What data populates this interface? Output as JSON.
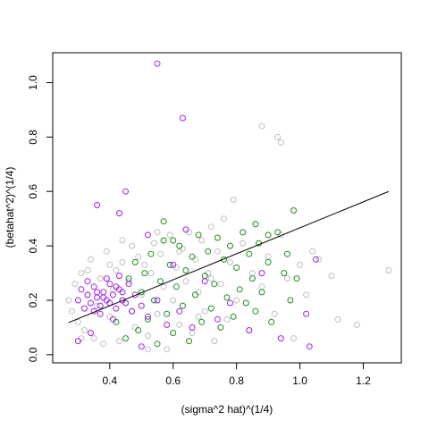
{
  "chart_data": {
    "type": "scatter",
    "title": "",
    "xlabel": "(sigma^2 hat)^(1/4)",
    "ylabel": "(betahat^2)^(1/4)",
    "xlim": [
      0.22,
      1.32
    ],
    "ylim": [
      -0.03,
      1.11
    ],
    "xticks": [
      "0.4",
      "0.6",
      "0.8",
      "1.0",
      "1.2"
    ],
    "yticks": [
      "0.0",
      "0.2",
      "0.4",
      "0.6",
      "0.8",
      "1.0"
    ],
    "grid": false,
    "legend": "none",
    "series": [
      {
        "color": "#bebebe",
        "marker": "open-circle",
        "points": [
          [
            0.27,
            0.2
          ],
          [
            0.28,
            0.16
          ],
          [
            0.29,
            0.26
          ],
          [
            0.3,
            0.12
          ],
          [
            0.31,
            0.3
          ],
          [
            0.32,
            0.09
          ],
          [
            0.33,
            0.22
          ],
          [
            0.34,
            0.35
          ],
          [
            0.35,
            0.06
          ],
          [
            0.36,
            0.18
          ],
          [
            0.37,
            0.28
          ],
          [
            0.38,
            0.04
          ],
          [
            0.39,
            0.38
          ],
          [
            0.4,
            0.14
          ],
          [
            0.41,
            0.24
          ],
          [
            0.42,
            0.31
          ],
          [
            0.43,
            0.05
          ],
          [
            0.44,
            0.34
          ],
          [
            0.45,
            0.19
          ],
          [
            0.46,
            0.27
          ],
          [
            0.47,
            0.4
          ],
          [
            0.48,
            0.1
          ],
          [
            0.49,
            0.36
          ],
          [
            0.5,
            0.22
          ],
          [
            0.51,
            0.33
          ],
          [
            0.52,
            0.07
          ],
          [
            0.53,
            0.3
          ],
          [
            0.54,
            0.41
          ],
          [
            0.55,
            0.15
          ],
          [
            0.56,
            0.37
          ],
          [
            0.57,
            0.25
          ],
          [
            0.58,
            0.02
          ],
          [
            0.59,
            0.44
          ],
          [
            0.6,
            0.2
          ],
          [
            0.61,
            0.32
          ],
          [
            0.62,
            0.11
          ],
          [
            0.63,
            0.39
          ],
          [
            0.64,
            0.27
          ],
          [
            0.65,
            0.45
          ],
          [
            0.66,
            0.08
          ],
          [
            0.67,
            0.35
          ],
          [
            0.68,
            0.23
          ],
          [
            0.69,
            0.42
          ],
          [
            0.7,
            0.16
          ],
          [
            0.71,
            0.3
          ],
          [
            0.72,
            0.47
          ],
          [
            0.73,
            0.05
          ],
          [
            0.74,
            0.38
          ],
          [
            0.75,
            0.26
          ],
          [
            0.76,
            0.5
          ],
          [
            0.77,
            0.13
          ],
          [
            0.78,
            0.34
          ],
          [
            0.79,
            0.57
          ],
          [
            0.8,
            0.2
          ],
          [
            0.82,
            0.41
          ],
          [
            0.84,
            0.09
          ],
          [
            0.85,
            0.3
          ],
          [
            0.86,
            0.48
          ],
          [
            0.88,
            0.25
          ],
          [
            0.9,
            0.36
          ],
          [
            0.92,
            0.15
          ],
          [
            0.94,
            0.44
          ],
          [
            0.96,
            0.28
          ],
          [
            0.98,
            0.06
          ],
          [
            1.0,
            0.33
          ],
          [
            1.02,
            0.22
          ],
          [
            0.88,
            0.84
          ],
          [
            0.93,
            0.8
          ],
          [
            0.94,
            0.78
          ],
          [
            1.1,
            0.29
          ],
          [
            1.12,
            0.13
          ],
          [
            1.18,
            0.11
          ],
          [
            1.28,
            0.31
          ],
          [
            1.04,
            0.38
          ],
          [
            1.06,
            0.35
          ],
          [
            0.72,
            0.28
          ],
          [
            0.55,
            0.45
          ],
          [
            0.44,
            0.42
          ],
          [
            0.33,
            0.31
          ],
          [
            0.31,
            0.06
          ],
          [
            0.52,
            0.02
          ],
          [
            0.62,
            0.38
          ],
          [
            0.68,
            0.14
          ],
          [
            0.4,
            0.33
          ]
        ]
      },
      {
        "color": "#1e8c1e",
        "marker": "open-circle",
        "points": [
          [
            0.42,
            0.12
          ],
          [
            0.44,
            0.2
          ],
          [
            0.45,
            0.06
          ],
          [
            0.46,
            0.28
          ],
          [
            0.47,
            0.16
          ],
          [
            0.48,
            0.34
          ],
          [
            0.49,
            0.09
          ],
          [
            0.5,
            0.23
          ],
          [
            0.51,
            0.3
          ],
          [
            0.52,
            0.13
          ],
          [
            0.53,
            0.37
          ],
          [
            0.54,
            0.2
          ],
          [
            0.55,
            0.04
          ],
          [
            0.56,
            0.27
          ],
          [
            0.57,
            0.42
          ],
          [
            0.58,
            0.15
          ],
          [
            0.59,
            0.33
          ],
          [
            0.6,
            0.08
          ],
          [
            0.61,
            0.25
          ],
          [
            0.62,
            0.4
          ],
          [
            0.63,
            0.18
          ],
          [
            0.64,
            0.31
          ],
          [
            0.65,
            0.05
          ],
          [
            0.66,
            0.36
          ],
          [
            0.67,
            0.22
          ],
          [
            0.68,
            0.44
          ],
          [
            0.69,
            0.12
          ],
          [
            0.7,
            0.29
          ],
          [
            0.71,
            0.38
          ],
          [
            0.72,
            0.17
          ],
          [
            0.73,
            0.26
          ],
          [
            0.74,
            0.43
          ],
          [
            0.75,
            0.1
          ],
          [
            0.76,
            0.35
          ],
          [
            0.77,
            0.21
          ],
          [
            0.78,
            0.4
          ],
          [
            0.79,
            0.14
          ],
          [
            0.8,
            0.32
          ],
          [
            0.81,
            0.24
          ],
          [
            0.82,
            0.45
          ],
          [
            0.83,
            0.19
          ],
          [
            0.84,
            0.37
          ],
          [
            0.85,
            0.28
          ],
          [
            0.86,
            0.16
          ],
          [
            0.87,
            0.41
          ],
          [
            0.88,
            0.23
          ],
          [
            0.9,
            0.34
          ],
          [
            0.91,
            0.12
          ],
          [
            0.93,
            0.45
          ],
          [
            0.95,
            0.3
          ],
          [
            0.96,
            0.37
          ],
          [
            0.98,
            0.53
          ],
          [
            0.97,
            0.2
          ],
          [
            0.99,
            0.28
          ],
          [
            0.57,
            0.49
          ],
          [
            0.6,
            0.42
          ],
          [
            0.86,
            0.48
          ],
          [
            0.9,
            0.44
          ]
        ]
      },
      {
        "color": "#a020f0",
        "marker": "open-circle",
        "points": [
          [
            0.3,
            0.2
          ],
          [
            0.31,
            0.24
          ],
          [
            0.32,
            0.17
          ],
          [
            0.33,
            0.22
          ],
          [
            0.34,
            0.19
          ],
          [
            0.35,
            0.25
          ],
          [
            0.36,
            0.21
          ],
          [
            0.37,
            0.18
          ],
          [
            0.38,
            0.23
          ],
          [
            0.39,
            0.2
          ],
          [
            0.4,
            0.26
          ],
          [
            0.41,
            0.22
          ],
          [
            0.42,
            0.17
          ],
          [
            0.43,
            0.24
          ],
          [
            0.44,
            0.2
          ],
          [
            0.45,
            0.19
          ],
          [
            0.36,
            0.23
          ],
          [
            0.38,
            0.21
          ],
          [
            0.4,
            0.19
          ],
          [
            0.42,
            0.25
          ],
          [
            0.44,
            0.23
          ],
          [
            0.37,
            0.15
          ],
          [
            0.39,
            0.28
          ],
          [
            0.41,
            0.13
          ],
          [
            0.43,
            0.29
          ],
          [
            0.35,
            0.16
          ],
          [
            0.33,
            0.27
          ],
          [
            0.46,
            0.26
          ],
          [
            0.47,
            0.16
          ],
          [
            0.48,
            0.22
          ],
          [
            0.5,
            0.18
          ],
          [
            0.52,
            0.14
          ],
          [
            0.55,
            0.2
          ],
          [
            0.58,
            0.11
          ],
          [
            0.62,
            0.16
          ],
          [
            0.66,
            0.1
          ],
          [
            0.7,
            0.27
          ],
          [
            0.74,
            0.13
          ],
          [
            0.78,
            0.19
          ],
          [
            0.84,
            0.09
          ],
          [
            0.88,
            0.3
          ],
          [
            0.94,
            0.06
          ],
          [
            1.02,
            0.15
          ],
          [
            1.03,
            0.03
          ],
          [
            1.05,
            0.35
          ],
          [
            0.55,
            1.07
          ],
          [
            0.63,
            0.87
          ],
          [
            0.45,
            0.6
          ],
          [
            0.36,
            0.55
          ],
          [
            0.43,
            0.52
          ],
          [
            0.52,
            0.44
          ],
          [
            0.6,
            0.33
          ],
          [
            0.64,
            0.46
          ],
          [
            0.3,
            0.05
          ],
          [
            0.34,
            0.08
          ],
          [
            0.5,
            0.03
          ]
        ]
      }
    ],
    "fit_line": {
      "x": [
        0.27,
        1.28
      ],
      "y": [
        0.118,
        0.6
      ]
    }
  }
}
